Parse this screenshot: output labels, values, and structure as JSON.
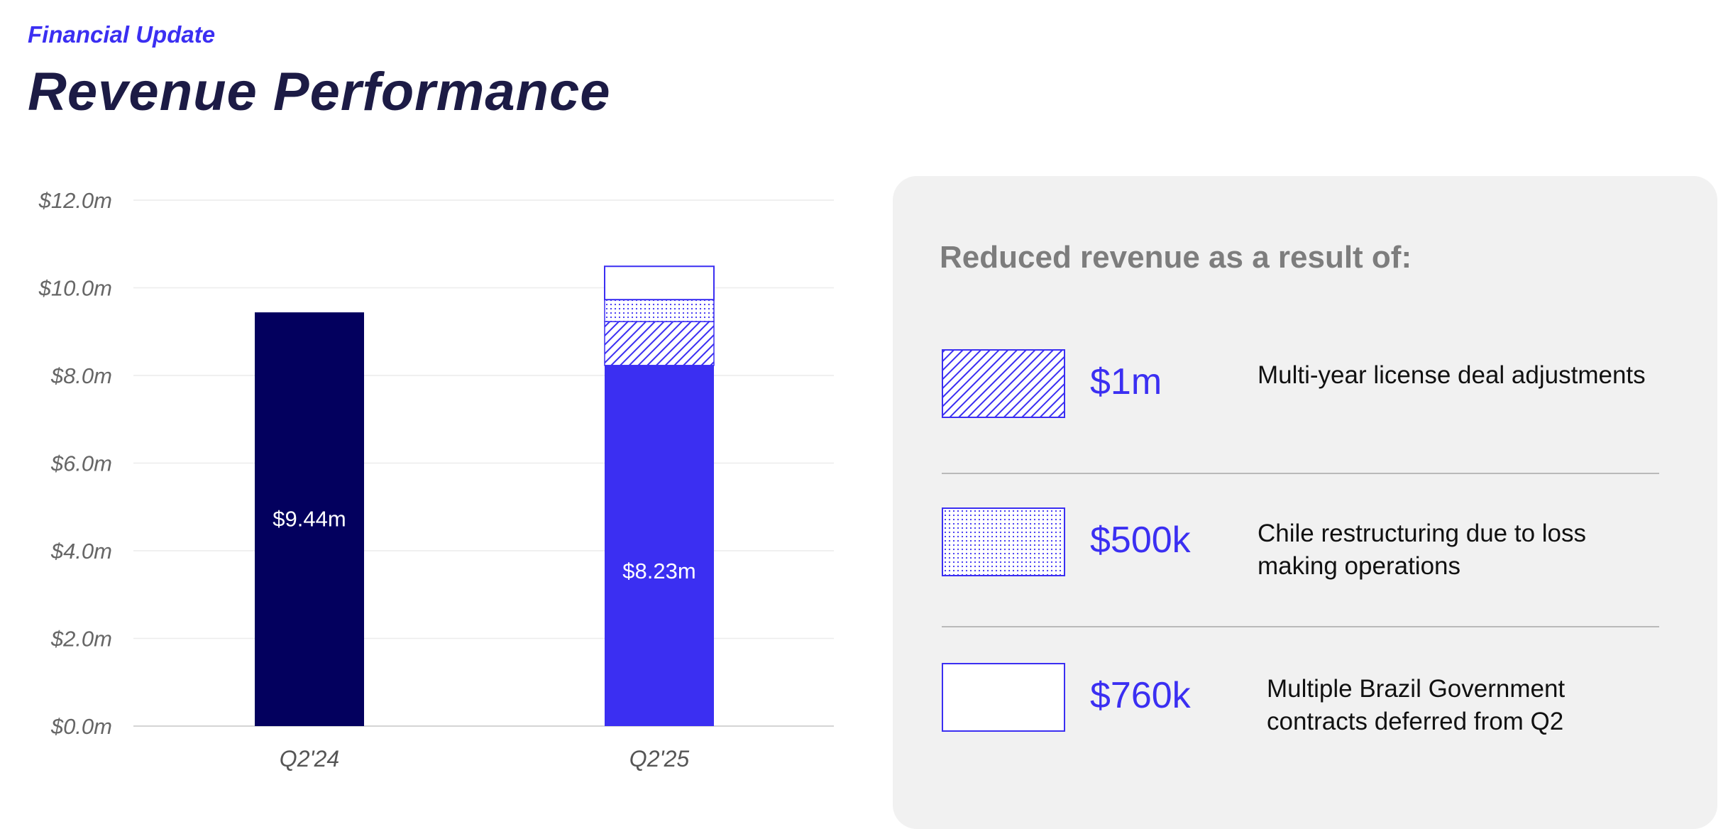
{
  "header": {
    "kicker": "Financial Update",
    "title": "Revenue Performance"
  },
  "colors": {
    "navy": "#03005e",
    "blue": "#3b2ff2",
    "heading_gray": "#7d7d7d"
  },
  "chart_data": {
    "type": "bar",
    "stacked": true,
    "categories": [
      "Q2'24",
      "Q2'25"
    ],
    "yticks": [
      "$12.0m",
      "$10.0m",
      "$8.0m",
      "$6.0m",
      "$4.0m",
      "$2.0m",
      "$0.0m"
    ],
    "ylim": [
      0,
      12
    ],
    "grid": true,
    "bars": [
      {
        "category": "Q2'24",
        "label": "$9.44m",
        "segments": [
          {
            "value": 9.44,
            "pattern": "solid",
            "color": "#03005e"
          }
        ]
      },
      {
        "category": "Q2'25",
        "label": "$8.23m",
        "segments": [
          {
            "value": 8.23,
            "pattern": "solid",
            "color": "#3b2ff2"
          },
          {
            "value": 1.0,
            "pattern": "hatch",
            "color": "#3b2ff2"
          },
          {
            "value": 0.5,
            "pattern": "dots",
            "color": "#3b2ff2"
          },
          {
            "value": 0.76,
            "pattern": "outline",
            "color": "#3b2ff2"
          }
        ]
      }
    ]
  },
  "panel": {
    "heading": "Reduced revenue as a result of:",
    "items": [
      {
        "amount": "$1m",
        "pattern": "hatch",
        "description": "Multi-year license deal adjustments"
      },
      {
        "amount": "$500k",
        "pattern": "dots",
        "description": "Chile restructuring due to loss making operations"
      },
      {
        "amount": "$760k",
        "pattern": "outline",
        "description": "Multiple Brazil Government contracts deferred from Q2"
      }
    ]
  }
}
